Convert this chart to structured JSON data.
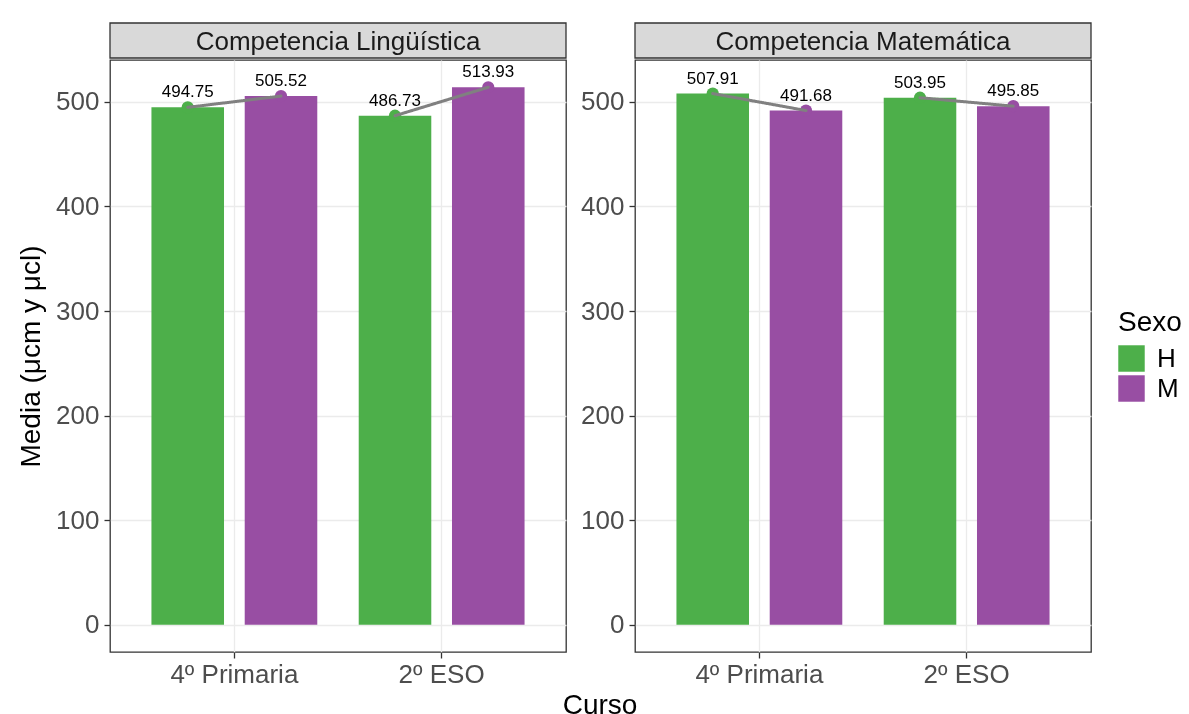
{
  "chart_data": [
    {
      "type": "bar",
      "title": "Competencia Lingüística",
      "xlabel": "Curso",
      "ylabel": "Media (μcm y μcl)",
      "categories": [
        "4º Primaria",
        "2º ESO"
      ],
      "series": [
        {
          "name": "H",
          "color": "#4daf4a",
          "values": [
            494.75,
            486.73
          ]
        },
        {
          "name": "M",
          "color": "#984ea3",
          "values": [
            505.52,
            513.93
          ]
        }
      ],
      "ylim": [
        -26,
        540
      ],
      "yticks": [
        0,
        100,
        200,
        300,
        400,
        500
      ],
      "grid": true,
      "data_labels": true,
      "marker": "circle",
      "line_style": "solid",
      "legend": "right"
    },
    {
      "type": "bar",
      "title": "Competencia Matemática",
      "categories": [
        "4º Primaria",
        "2º ESO"
      ],
      "series": [
        {
          "name": "H",
          "color": "#4daf4a",
          "values": [
            507.91,
            503.95
          ]
        },
        {
          "name": "M",
          "color": "#984ea3",
          "values": [
            491.68,
            495.85
          ]
        }
      ],
      "ylim": [
        -26,
        540
      ],
      "yticks": [
        0,
        100,
        200,
        300,
        400,
        500
      ],
      "grid": true,
      "data_labels": true,
      "marker": "circle",
      "line_style": "solid",
      "legend": "right",
      "legend_title": "Sexo"
    }
  ]
}
